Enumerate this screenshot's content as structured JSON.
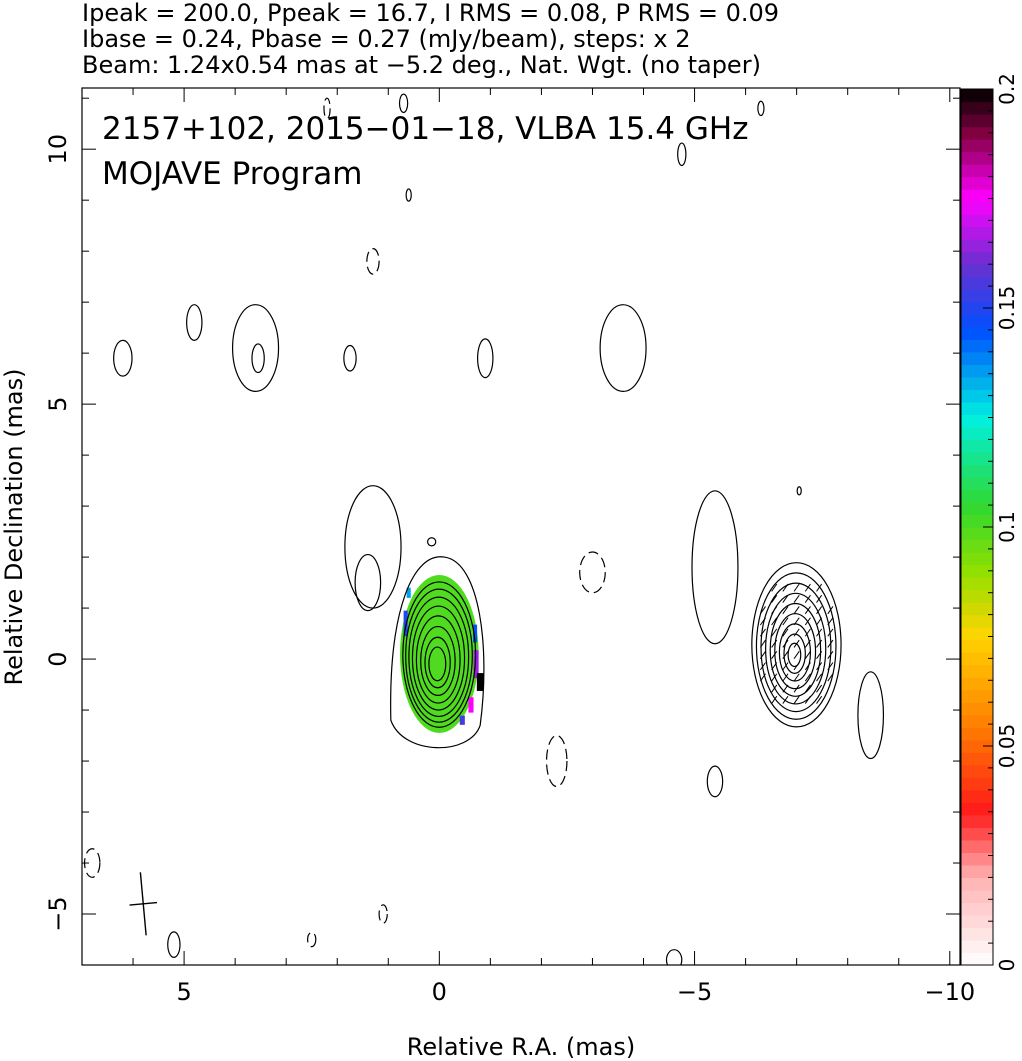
{
  "header": {
    "line1": "Ipeak = 200.0, Ppeak = 16.7, I RMS = 0.08, P RMS = 0.09",
    "line2": "Ibase = 0.24, Pbase = 0.27 (mJy/beam), steps: x 2",
    "line3": "Beam: 1.24x0.54 mas at −5.2 deg., Nat. Wgt. (no taper)"
  },
  "chart_data": {
    "type": "heatmap",
    "annotation": {
      "line1": "2157+102, 2015−01−18, VLBA 15.4 GHz",
      "line2": "MOJAVE Program"
    },
    "xlabel": "Relative R.A. (mas)",
    "ylabel": "Relative Declination (mas)",
    "xlim": [
      7.0,
      -10.2
    ],
    "ylim": [
      -6.0,
      11.2
    ],
    "x_ticks": [
      {
        "value": 5,
        "label": "5"
      },
      {
        "value": 0,
        "label": "0"
      },
      {
        "value": -5,
        "label": "−5"
      },
      {
        "value": -10,
        "label": "−10"
      }
    ],
    "y_ticks": [
      {
        "value": -5,
        "label": "−5"
      },
      {
        "value": 0,
        "label": "0"
      },
      {
        "value": 5,
        "label": "5"
      },
      {
        "value": 10,
        "label": "10"
      }
    ],
    "colorbar": {
      "range": [
        0,
        0.2
      ],
      "ticks": [
        {
          "value": 0,
          "label": "0"
        },
        {
          "value": 0.05,
          "label": "0.05"
        },
        {
          "value": 0.1,
          "label": "0.1"
        },
        {
          "value": 0.15,
          "label": "0.15"
        },
        {
          "value": 0.2,
          "label": "0.2"
        }
      ],
      "stops": [
        {
          "v": 0.0,
          "color": "#ffffff"
        },
        {
          "v": 0.02,
          "color": "#ffb3b3"
        },
        {
          "v": 0.035,
          "color": "#ff1a1a"
        },
        {
          "v": 0.055,
          "color": "#ff8000"
        },
        {
          "v": 0.075,
          "color": "#ffd400"
        },
        {
          "v": 0.09,
          "color": "#90e000"
        },
        {
          "v": 0.105,
          "color": "#30d830"
        },
        {
          "v": 0.125,
          "color": "#00f0e0"
        },
        {
          "v": 0.145,
          "color": "#0050ff"
        },
        {
          "v": 0.16,
          "color": "#6a30d0"
        },
        {
          "v": 0.175,
          "color": "#ff00ff"
        },
        {
          "v": 0.19,
          "color": "#800040"
        },
        {
          "v": 0.2,
          "color": "#000000"
        }
      ]
    },
    "core": {
      "ra": 0.0,
      "dec": 0.1,
      "semi_ra": 0.75,
      "semi_dec": 1.5,
      "frac_levels": [
        0.95,
        0.87,
        0.78,
        0.68,
        0.57,
        0.45,
        0.33,
        0.22
      ]
    },
    "pol_core": {
      "ra": 0.0,
      "dec": 0.1,
      "semi_ra": 0.77,
      "semi_dec": 1.55,
      "value": 0.1
    },
    "knot": {
      "ra": -7.0,
      "dec": 0.3,
      "semi_ra": 0.95,
      "semi_dec": 1.75,
      "frac_levels": [
        0.92,
        0.82,
        0.72,
        0.62,
        0.52,
        0.42,
        0.32,
        0.22,
        0.13
      ]
    },
    "beam": {
      "ra": 5.8,
      "dec": -4.8,
      "major": 1.24,
      "minor": 0.54,
      "pa_deg": -5.2
    }
  }
}
